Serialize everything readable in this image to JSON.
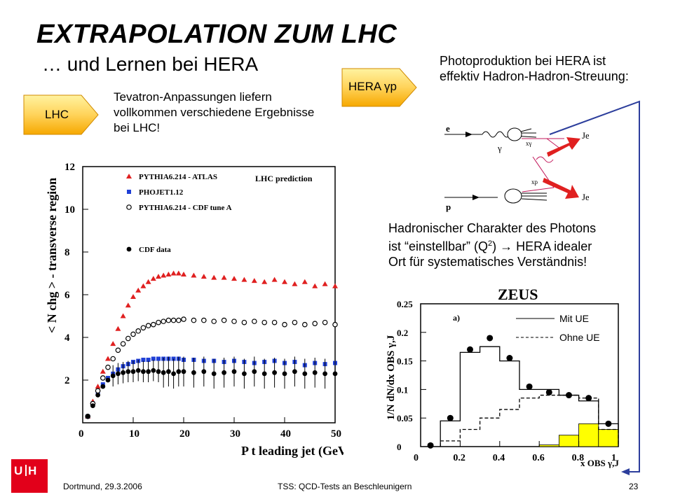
{
  "slide": {
    "title": "EXTRAPOLATION ZUM LHC",
    "subtitle": "… und Lernen bei HERA",
    "hera_badge": "HERA γp",
    "lhc_badge": "LHC",
    "tevatron_text": "Tevatron-Anpassungen liefern vollkommen verschiedene Ergebnisse bei LHC!",
    "photoproduktion_text": "Photoproduktion bei HERA ist effektiv Hadron-Hadron-Streuung:",
    "hadronic_text": "Hadronischer Charakter des Photons ist “einstellbar” (Q2)  HERA idealer Ort für systematisches Verständnis!",
    "hadronic_line1": "Hadronischer Charakter des Photons",
    "hadronic_line2a": "ist “einstellbar” (Q",
    "hadronic_line2b": "2",
    "hadronic_line2c": ")  → HERA idealer",
    "hadronic_line3": "Ort für systematisches Verständnis!",
    "footer_left": "Dortmund, 29.3.2006",
    "footer_center": "TSS: QCD-Tests an Beschleunigern",
    "footer_right": "23",
    "logo": "UHH"
  },
  "diagram": {
    "labels": [
      "e",
      "γ",
      "xγ",
      "xp",
      "p",
      "Jet",
      "Jet"
    ]
  },
  "chart_data": [
    {
      "type": "scatter",
      "title": "LHC prediction",
      "xlabel": "P t leading jet (GeV)",
      "ylabel": "< N chg > - transverse region",
      "xlim": [
        0,
        50
      ],
      "ylim": [
        0,
        12
      ],
      "xticks": [
        "0",
        "10",
        "20",
        "30",
        "40",
        "50"
      ],
      "yticks": [
        "2",
        "4",
        "6",
        "8",
        "10",
        "12"
      ],
      "legend": [
        "PYTHIA6.214 - ATLAS",
        "PHOJET1.12",
        "PYTHIA6.214 - CDF tune A",
        "CDF data"
      ],
      "series": [
        {
          "name": "PYTHIA6.214 - ATLAS",
          "color": "#e02020",
          "x": [
            1,
            2,
            3,
            4,
            5,
            6,
            7,
            8,
            9,
            10,
            11,
            12,
            13,
            14,
            15,
            16,
            17,
            18,
            19,
            20,
            22,
            24,
            26,
            28,
            30,
            32,
            34,
            36,
            38,
            40,
            42,
            44,
            46,
            48,
            50
          ],
          "y": [
            0.3,
            1.0,
            1.7,
            2.4,
            3.0,
            3.7,
            4.4,
            5.0,
            5.5,
            5.9,
            6.2,
            6.4,
            6.6,
            6.75,
            6.85,
            6.9,
            6.95,
            7.0,
            7.0,
            6.95,
            6.9,
            6.85,
            6.8,
            6.8,
            6.75,
            6.7,
            6.65,
            6.6,
            6.7,
            6.6,
            6.5,
            6.6,
            6.4,
            6.5,
            6.4
          ]
        },
        {
          "name": "PHOJET1.12",
          "color": "#1f3fd6",
          "x": [
            1,
            2,
            3,
            4,
            5,
            6,
            7,
            8,
            9,
            10,
            11,
            12,
            13,
            14,
            15,
            16,
            17,
            18,
            19,
            20,
            22,
            24,
            26,
            28,
            30,
            32,
            34,
            36,
            38,
            40,
            42,
            44,
            46,
            48,
            50
          ],
          "y": [
            0.3,
            0.9,
            1.4,
            1.8,
            2.1,
            2.3,
            2.5,
            2.65,
            2.75,
            2.85,
            2.9,
            2.95,
            2.95,
            3.0,
            3.0,
            3.0,
            3.0,
            3.0,
            3.0,
            2.95,
            2.95,
            2.9,
            2.9,
            2.85,
            2.9,
            2.85,
            2.8,
            2.85,
            2.9,
            2.8,
            2.85,
            2.7,
            2.8,
            2.75,
            2.8
          ]
        },
        {
          "name": "PYTHIA6.214 - CDF tune A",
          "color": "#000000",
          "x": [
            1,
            2,
            3,
            4,
            5,
            6,
            7,
            8,
            9,
            10,
            11,
            12,
            13,
            14,
            15,
            16,
            17,
            18,
            19,
            20,
            22,
            24,
            26,
            28,
            30,
            32,
            34,
            36,
            38,
            40,
            42,
            44,
            46,
            48,
            50
          ],
          "y": [
            0.3,
            0.9,
            1.5,
            2.1,
            2.6,
            3.0,
            3.4,
            3.7,
            3.95,
            4.15,
            4.3,
            4.45,
            4.55,
            4.6,
            4.7,
            4.75,
            4.8,
            4.8,
            4.8,
            4.85,
            4.8,
            4.8,
            4.75,
            4.8,
            4.75,
            4.7,
            4.75,
            4.7,
            4.7,
            4.6,
            4.7,
            4.6,
            4.65,
            4.7,
            4.6
          ]
        },
        {
          "name": "CDF data",
          "color": "#000000",
          "x": [
            1,
            2,
            3,
            4,
            5,
            6,
            7,
            8,
            9,
            10,
            11,
            12,
            13,
            14,
            15,
            16,
            17,
            18,
            19,
            20,
            22,
            24,
            26,
            28,
            30,
            32,
            34,
            36,
            38,
            40,
            42,
            44,
            46,
            48,
            50
          ],
          "y": [
            0.3,
            0.8,
            1.3,
            1.7,
            2.0,
            2.2,
            2.3,
            2.35,
            2.4,
            2.4,
            2.45,
            2.4,
            2.4,
            2.45,
            2.4,
            2.35,
            2.4,
            2.3,
            2.4,
            2.4,
            2.35,
            2.4,
            2.3,
            2.35,
            2.4,
            2.3,
            2.4,
            2.3,
            2.35,
            2.3,
            2.4,
            2.3,
            2.35,
            2.3,
            2.3
          ]
        }
      ]
    },
    {
      "type": "line",
      "title": "ZEUS",
      "annotation": "a)",
      "xlabel": "x OBS γ,J",
      "ylabel": "1/N dN/dx OBS γ,J",
      "xlim": [
        0,
        1
      ],
      "ylim": [
        0,
        0.25
      ],
      "xticks": [
        "0",
        "0.2",
        "0.4",
        "0.6",
        "0.8",
        "1"
      ],
      "yticks": [
        "0",
        "0.05",
        "0.1",
        "0.15",
        "0.2",
        "0.25"
      ],
      "legend": [
        "Mit UE",
        "Ohne UE"
      ],
      "series": [
        {
          "name": "Mit UE",
          "style": "solid",
          "bins": [
            [
              0.1,
              0.2
            ],
            [
              0.2,
              0.3
            ],
            [
              0.3,
              0.4
            ],
            [
              0.4,
              0.5
            ],
            [
              0.5,
              0.6
            ],
            [
              0.6,
              0.7
            ],
            [
              0.7,
              0.8
            ],
            [
              0.8,
              0.9
            ],
            [
              0.9,
              1.0
            ]
          ],
          "values": [
            0.045,
            0.165,
            0.175,
            0.15,
            0.1,
            0.1,
            0.09,
            0.08,
            0.04
          ]
        },
        {
          "name": "Ohne UE",
          "style": "dashed",
          "bins": [
            [
              0.1,
              0.2
            ],
            [
              0.2,
              0.3
            ],
            [
              0.3,
              0.4
            ],
            [
              0.4,
              0.5
            ],
            [
              0.5,
              0.6
            ],
            [
              0.6,
              0.7
            ],
            [
              0.7,
              0.8
            ],
            [
              0.8,
              0.9
            ],
            [
              0.9,
              1.0
            ]
          ],
          "values": [
            0.01,
            0.03,
            0.05,
            0.065,
            0.085,
            0.09,
            0.09,
            0.085,
            0.03
          ]
        },
        {
          "name": "data",
          "x": [
            0.05,
            0.15,
            0.25,
            0.35,
            0.45,
            0.55,
            0.65,
            0.75,
            0.85,
            0.95
          ],
          "y": [
            0.002,
            0.05,
            0.17,
            0.19,
            0.155,
            0.105,
            0.095,
            0.09,
            0.085,
            0.04
          ]
        },
        {
          "name": "shaded",
          "color": "#ffff00",
          "bins": [
            [
              0.6,
              0.7
            ],
            [
              0.7,
              0.8
            ],
            [
              0.8,
              0.9
            ],
            [
              0.9,
              1.0
            ]
          ],
          "values": [
            0.003,
            0.02,
            0.04,
            0.03
          ]
        }
      ]
    }
  ]
}
